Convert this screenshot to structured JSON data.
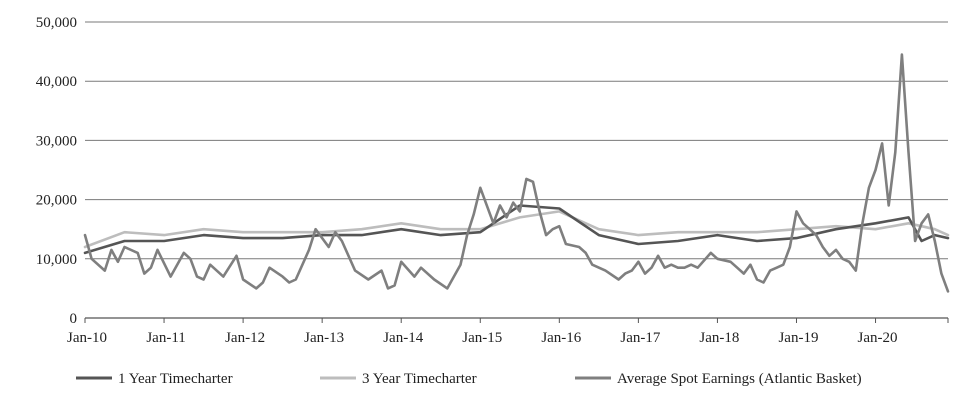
{
  "chart_data": {
    "type": "line",
    "title": "",
    "xlabel": "",
    "ylabel": "",
    "ylim": [
      0,
      50000
    ],
    "yticks": [
      "0",
      "10,000",
      "20,000",
      "30,000",
      "40,000",
      "50,000"
    ],
    "xticks": [
      "Jan-10",
      "Jan-11",
      "Jan-12",
      "Jan-13",
      "Jan-14",
      "Jan-15",
      "Jan-16",
      "Jan-17",
      "Jan-18",
      "Jan-19",
      "Jan-20"
    ],
    "x_start": "Jan-10",
    "x_end": "Dec-20",
    "grid": "horizontal",
    "legend_position": "bottom",
    "colors": {
      "one_year": "#555555",
      "three_year": "#bdbdbd",
      "spot": "#7f7f7f",
      "grid": "#7a7a7a",
      "axis": "#555555"
    },
    "series": [
      {
        "name": "1 Year Timecharter",
        "key": "one_year",
        "points": [
          [
            "Jan-10",
            11000
          ],
          [
            "Jul-10",
            13000
          ],
          [
            "Jan-11",
            13000
          ],
          [
            "Jul-11",
            14000
          ],
          [
            "Jan-12",
            13500
          ],
          [
            "Jul-12",
            13500
          ],
          [
            "Jan-13",
            14000
          ],
          [
            "Jul-13",
            14000
          ],
          [
            "Jan-14",
            15000
          ],
          [
            "Jul-14",
            14000
          ],
          [
            "Jan-15",
            14500
          ],
          [
            "Jul-15",
            19000
          ],
          [
            "Jan-16",
            18500
          ],
          [
            "Jul-16",
            14000
          ],
          [
            "Jan-17",
            12500
          ],
          [
            "Jul-17",
            13000
          ],
          [
            "Jan-18",
            14000
          ],
          [
            "Jul-18",
            13000
          ],
          [
            "Jan-19",
            13500
          ],
          [
            "Jul-19",
            15000
          ],
          [
            "Jan-20",
            16000
          ],
          [
            "Jun-20",
            17000
          ],
          [
            "Aug-20",
            13000
          ],
          [
            "Oct-20",
            14000
          ],
          [
            "Dec-20",
            13500
          ]
        ]
      },
      {
        "name": "3 Year Timecharter",
        "key": "three_year",
        "points": [
          [
            "Jan-10",
            12000
          ],
          [
            "Jul-10",
            14500
          ],
          [
            "Jan-11",
            14000
          ],
          [
            "Jul-11",
            15000
          ],
          [
            "Jan-12",
            14500
          ],
          [
            "Jul-12",
            14500
          ],
          [
            "Jan-13",
            14500
          ],
          [
            "Jul-13",
            15000
          ],
          [
            "Jan-14",
            16000
          ],
          [
            "Jul-14",
            15000
          ],
          [
            "Jan-15",
            15000
          ],
          [
            "Jul-15",
            17000
          ],
          [
            "Jan-16",
            18000
          ],
          [
            "Jul-16",
            15000
          ],
          [
            "Jan-17",
            14000
          ],
          [
            "Jul-17",
            14500
          ],
          [
            "Jan-18",
            14500
          ],
          [
            "Jul-18",
            14500
          ],
          [
            "Jan-19",
            15000
          ],
          [
            "Jul-19",
            15500
          ],
          [
            "Jan-20",
            15000
          ],
          [
            "Jun-20",
            16000
          ],
          [
            "Aug-20",
            15500
          ],
          [
            "Oct-20",
            15000
          ],
          [
            "Dec-20",
            14000
          ]
        ]
      },
      {
        "name": "Average Spot Earnings (Atlantic Basket)",
        "key": "spot",
        "points": [
          [
            "Jan-10",
            14000
          ],
          [
            "Feb-10",
            10000
          ],
          [
            "Apr-10",
            8000
          ],
          [
            "May-10",
            11500
          ],
          [
            "Jun-10",
            9500
          ],
          [
            "Jul-10",
            12000
          ],
          [
            "Sep-10",
            11000
          ],
          [
            "Oct-10",
            7500
          ],
          [
            "Nov-10",
            8500
          ],
          [
            "Dec-10",
            11500
          ],
          [
            "Feb-11",
            7000
          ],
          [
            "Apr-11",
            11000
          ],
          [
            "May-11",
            10000
          ],
          [
            "Jun-11",
            7000
          ],
          [
            "Jul-11",
            6500
          ],
          [
            "Aug-11",
            9000
          ],
          [
            "Oct-11",
            7000
          ],
          [
            "Dec-11",
            10500
          ],
          [
            "Jan-12",
            6500
          ],
          [
            "Mar-12",
            5000
          ],
          [
            "Apr-12",
            6000
          ],
          [
            "May-12",
            8500
          ],
          [
            "Jul-12",
            7000
          ],
          [
            "Aug-12",
            6000
          ],
          [
            "Sep-12",
            6500
          ],
          [
            "Nov-12",
            11500
          ],
          [
            "Dec-12",
            15000
          ],
          [
            "Feb-13",
            12000
          ],
          [
            "Mar-13",
            14500
          ],
          [
            "Apr-13",
            13000
          ],
          [
            "Jun-13",
            8000
          ],
          [
            "Aug-13",
            6500
          ],
          [
            "Oct-13",
            8000
          ],
          [
            "Nov-13",
            5000
          ],
          [
            "Dec-13",
            5500
          ],
          [
            "Jan-14",
            9500
          ],
          [
            "Mar-14",
            7000
          ],
          [
            "Apr-14",
            8500
          ],
          [
            "Jun-14",
            6500
          ],
          [
            "Aug-14",
            5000
          ],
          [
            "Oct-14",
            9000
          ],
          [
            "Nov-14",
            14000
          ],
          [
            "Dec-14",
            17500
          ],
          [
            "Jan-15",
            22000
          ],
          [
            "Mar-15",
            16000
          ],
          [
            "Apr-15",
            19000
          ],
          [
            "May-15",
            17000
          ],
          [
            "Jun-15",
            19500
          ],
          [
            "Jul-15",
            18000
          ],
          [
            "Aug-15",
            23500
          ],
          [
            "Sep-15",
            23000
          ],
          [
            "Oct-15",
            18000
          ],
          [
            "Nov-15",
            14000
          ],
          [
            "Dec-15",
            15000
          ],
          [
            "Jan-16",
            15500
          ],
          [
            "Feb-16",
            12500
          ],
          [
            "Apr-16",
            12000
          ],
          [
            "May-16",
            11000
          ],
          [
            "Jun-16",
            9000
          ],
          [
            "Aug-16",
            8000
          ],
          [
            "Oct-16",
            6500
          ],
          [
            "Nov-16",
            7500
          ],
          [
            "Dec-16",
            8000
          ],
          [
            "Jan-17",
            9500
          ],
          [
            "Feb-17",
            7500
          ],
          [
            "Mar-17",
            8500
          ],
          [
            "Apr-17",
            10500
          ],
          [
            "May-17",
            8500
          ],
          [
            "Jun-17",
            9000
          ],
          [
            "Jul-17",
            8500
          ],
          [
            "Aug-17",
            8500
          ],
          [
            "Sep-17",
            9000
          ],
          [
            "Oct-17",
            8500
          ],
          [
            "Dec-17",
            11000
          ],
          [
            "Jan-18",
            10000
          ],
          [
            "Mar-18",
            9500
          ],
          [
            "Apr-18",
            8500
          ],
          [
            "May-18",
            7500
          ],
          [
            "Jun-18",
            9000
          ],
          [
            "Jul-18",
            6500
          ],
          [
            "Aug-18",
            6000
          ],
          [
            "Sep-18",
            8000
          ],
          [
            "Oct-18",
            8500
          ],
          [
            "Nov-18",
            9000
          ],
          [
            "Dec-18",
            12000
          ],
          [
            "Jan-19",
            18000
          ],
          [
            "Feb-19",
            16000
          ],
          [
            "Mar-19",
            15000
          ],
          [
            "Apr-19",
            14000
          ],
          [
            "May-19",
            12000
          ],
          [
            "Jun-19",
            10500
          ],
          [
            "Jul-19",
            11500
          ],
          [
            "Aug-19",
            10000
          ],
          [
            "Sep-19",
            9500
          ],
          [
            "Oct-19",
            8000
          ],
          [
            "Nov-19",
            16000
          ],
          [
            "Dec-19",
            22000
          ],
          [
            "Jan-20",
            25000
          ],
          [
            "Feb-20",
            29500
          ],
          [
            "Mar-20",
            19000
          ],
          [
            "Apr-20",
            28000
          ],
          [
            "May-20",
            44500
          ],
          [
            "Jun-20",
            28000
          ],
          [
            "Jul-20",
            13000
          ],
          [
            "Aug-20",
            16000
          ],
          [
            "Sep-20",
            17500
          ],
          [
            "Oct-20",
            13000
          ],
          [
            "Nov-20",
            7500
          ],
          [
            "Dec-20",
            4500
          ]
        ]
      }
    ]
  }
}
